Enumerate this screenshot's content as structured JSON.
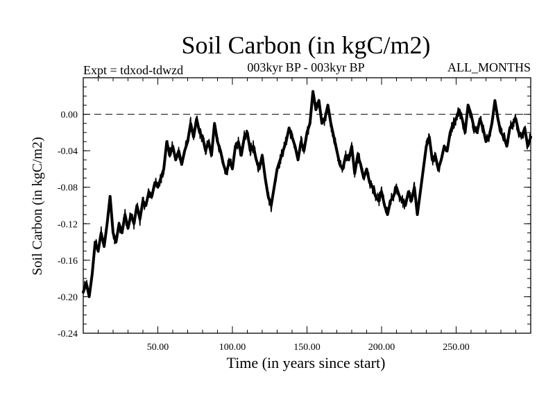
{
  "chart_data": {
    "type": "line",
    "title": "Soil Carbon (in kgC/m2)",
    "header_left": "Expt = tdxod-tdwzd",
    "header_center": "003kyr BP - 003kyr BP",
    "header_right": "ALL_MONTHS",
    "xlabel": "Time (in years since start)",
    "ylabel": "Soil Carbon (in kgC/m2)",
    "xlim": [
      0,
      300
    ],
    "ylim": [
      -0.24,
      0.04
    ],
    "x_ticks": [
      50,
      100,
      150,
      200,
      250
    ],
    "x_tick_labels": [
      "50.00",
      "100.00",
      "150.00",
      "200.00",
      "250.00"
    ],
    "y_ticks": [
      0.0,
      -0.04,
      -0.08,
      -0.12,
      -0.16,
      -0.2,
      -0.24
    ],
    "y_tick_labels": [
      "0.00",
      "-0.04",
      "-0.08",
      "-0.12",
      "-0.16",
      "-0.20",
      "-0.24"
    ],
    "reference_line": {
      "y": 0.0,
      "style": "dashed"
    },
    "line_color": "#000000",
    "series": [
      {
        "x": [
          0,
          2,
          4,
          6,
          8,
          10,
          12,
          14,
          16,
          18,
          20,
          22,
          24,
          26,
          28,
          30,
          32,
          34,
          36,
          38,
          40,
          42,
          44,
          46,
          48,
          50,
          52,
          54,
          56,
          58,
          60,
          62,
          64,
          66,
          68,
          70,
          72,
          74,
          76,
          78,
          80,
          82,
          84,
          86,
          88,
          90,
          92,
          94,
          96,
          98,
          100,
          102,
          104,
          106,
          108,
          110,
          112,
          114,
          116,
          118,
          120,
          122,
          124,
          126,
          128,
          130,
          132,
          134,
          136,
          138,
          140,
          142,
          144,
          146,
          148,
          150,
          152,
          154,
          156,
          158,
          160,
          162,
          164,
          166,
          168,
          170,
          172,
          174,
          176,
          178,
          180,
          182,
          184,
          186,
          188,
          190,
          192,
          194,
          196,
          198,
          200,
          202,
          204,
          206,
          208,
          210,
          212,
          214,
          216,
          218,
          220,
          222,
          224,
          226,
          228,
          230,
          232,
          234,
          236,
          238,
          240,
          242,
          244,
          246,
          248,
          250,
          252,
          254,
          256,
          258,
          260,
          262,
          264,
          266,
          268,
          270,
          272,
          274,
          276,
          278,
          280,
          282,
          284,
          286,
          288,
          290,
          292,
          294,
          296,
          298,
          300
        ],
        "values": [
          -0.195,
          -0.185,
          -0.2,
          -0.175,
          -0.14,
          -0.15,
          -0.13,
          -0.145,
          -0.12,
          -0.09,
          -0.13,
          -0.14,
          -0.12,
          -0.13,
          -0.11,
          -0.125,
          -0.11,
          -0.12,
          -0.1,
          -0.115,
          -0.095,
          -0.1,
          -0.085,
          -0.09,
          -0.075,
          -0.08,
          -0.07,
          -0.06,
          -0.03,
          -0.045,
          -0.035,
          -0.05,
          -0.04,
          -0.055,
          -0.04,
          -0.03,
          -0.01,
          -0.025,
          -0.005,
          -0.02,
          -0.025,
          -0.04,
          -0.03,
          -0.045,
          -0.01,
          -0.03,
          -0.04,
          -0.055,
          -0.065,
          -0.05,
          -0.06,
          -0.035,
          -0.03,
          -0.045,
          -0.025,
          -0.02,
          -0.04,
          -0.035,
          -0.05,
          -0.06,
          -0.045,
          -0.07,
          -0.09,
          -0.1,
          -0.08,
          -0.06,
          -0.05,
          -0.04,
          -0.03,
          -0.015,
          -0.025,
          -0.035,
          -0.05,
          -0.03,
          -0.04,
          -0.02,
          -0.01,
          0.025,
          0.005,
          0.015,
          -0.01,
          -0.005,
          0.01,
          -0.01,
          -0.025,
          -0.04,
          -0.055,
          -0.06,
          -0.045,
          -0.05,
          -0.035,
          -0.065,
          -0.045,
          -0.055,
          -0.07,
          -0.06,
          -0.075,
          -0.08,
          -0.09,
          -0.095,
          -0.085,
          -0.1,
          -0.11,
          -0.095,
          -0.09,
          -0.08,
          -0.09,
          -0.095,
          -0.1,
          -0.085,
          -0.095,
          -0.08,
          -0.11,
          -0.085,
          -0.06,
          -0.035,
          -0.025,
          -0.05,
          -0.045,
          -0.06,
          -0.05,
          -0.035,
          -0.04,
          -0.02,
          -0.01,
          -0.005,
          0.005,
          -0.005,
          -0.02,
          0.01,
          0.0,
          -0.015,
          -0.02,
          -0.005,
          -0.015,
          -0.03,
          -0.025,
          -0.01,
          0.015,
          -0.005,
          -0.02,
          -0.025,
          -0.035,
          -0.015,
          -0.01,
          -0.005,
          -0.02,
          -0.025,
          -0.015,
          -0.035,
          -0.025
        ]
      }
    ]
  }
}
